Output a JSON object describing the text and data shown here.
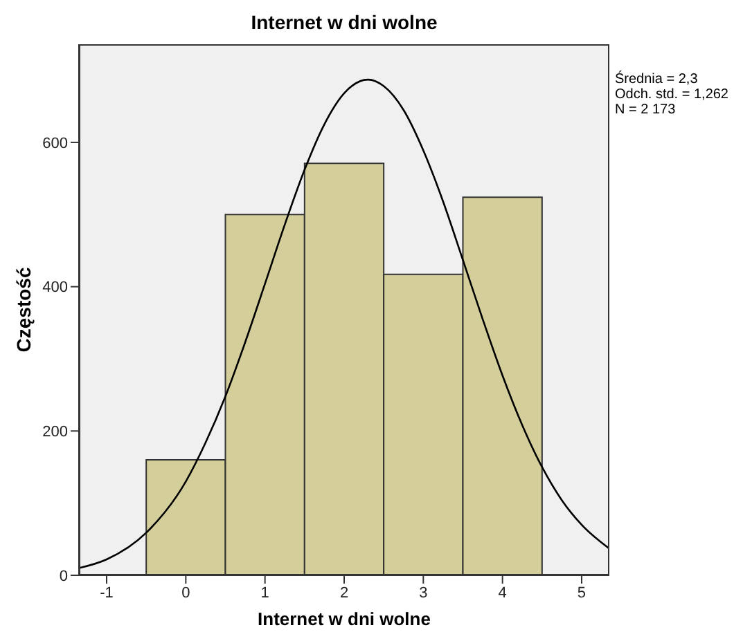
{
  "chart_data": {
    "type": "histogram",
    "title": "Internet w dni wolne",
    "xlabel": "Internet w dni wolne",
    "ylabel": "Częstość",
    "bins": [
      -0.5,
      0.5,
      1.5,
      2.5,
      3.5,
      4.5
    ],
    "values": [
      160,
      500,
      571,
      417,
      524
    ],
    "color": "#d3ce9a",
    "xlim": [
      -1.35,
      5.35
    ],
    "xticks": [
      -1,
      0,
      1,
      2,
      3,
      4,
      5
    ],
    "ylim": [
      0,
      736
    ],
    "yticks": [
      0,
      200,
      400,
      600
    ],
    "series": [
      {
        "type": "line",
        "color": "#000000",
        "x": [
          -1.35,
          -1,
          -0.5,
          0,
          0.25,
          0.5,
          0.75,
          1,
          1.25,
          1.5,
          1.75,
          2,
          2.3,
          2.5,
          2.75,
          3,
          3.25,
          3.5,
          3.75,
          4,
          4.25,
          4.5,
          4.75,
          5,
          5.35
        ],
        "values": [
          10,
          22,
          59,
          130,
          184,
          248,
          323,
          404,
          486,
          562,
          625,
          668,
          687,
          678,
          645,
          589,
          518,
          437,
          355,
          277,
          208,
          150,
          104,
          70,
          37
        ]
      }
    ],
    "annotations": [
      "Średnia = 2,3",
      "Odch. std. = 1,262",
      "N = 2 173"
    ]
  }
}
